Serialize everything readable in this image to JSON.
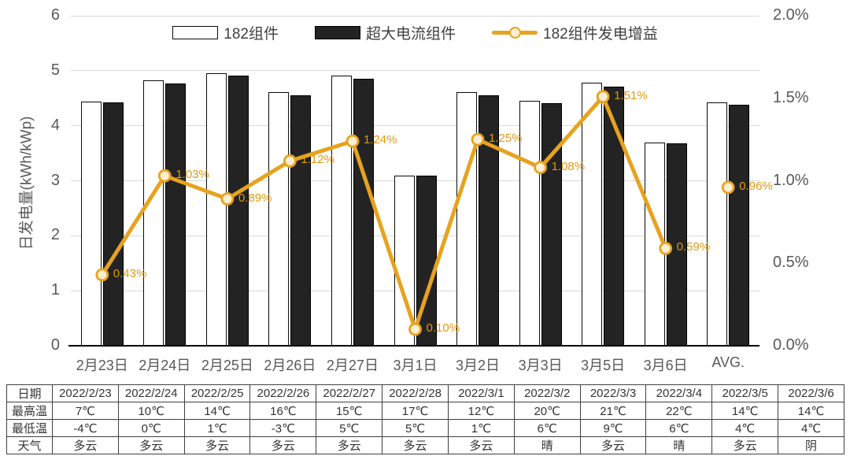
{
  "chart_data": {
    "type": "combo-bar-line",
    "title": "",
    "categories": [
      "2月23日",
      "2月24日",
      "2月25日",
      "2月26日",
      "2月27日",
      "3月1日",
      "3月2日",
      "3月3日",
      "3月5日",
      "3月6日",
      "AVG."
    ],
    "series": [
      {
        "name": "182组件",
        "type": "bar",
        "axis": "left",
        "values": [
          4.44,
          4.82,
          4.95,
          4.61,
          4.91,
          3.1,
          4.61,
          4.46,
          4.78,
          3.7,
          4.42
        ]
      },
      {
        "name": "超大电流组件",
        "type": "bar",
        "axis": "left",
        "values": [
          4.42,
          4.77,
          4.91,
          4.56,
          4.85,
          3.09,
          4.55,
          4.41,
          4.71,
          3.68,
          4.38
        ]
      },
      {
        "name": "182组件发电增益",
        "type": "line",
        "axis": "right",
        "values": [
          0.43,
          1.03,
          0.89,
          1.12,
          1.24,
          0.1,
          1.25,
          1.08,
          1.51,
          0.59,
          0.96
        ],
        "labels": [
          "0.43%",
          "1.03%",
          "0.89%",
          "1.12%",
          "1.24%",
          "0.10%",
          "1.25%",
          "1.08%",
          "1.51%",
          "0.59%",
          "0.96%"
        ],
        "last_point_disconnected": true
      }
    ],
    "ylabel": "日发电量(kWh/kWp)",
    "y_left": {
      "min": 0,
      "max": 6,
      "ticks": [
        0,
        1,
        2,
        3,
        4,
        5,
        6
      ]
    },
    "y_right": {
      "min": 0,
      "max": 2,
      "tick_labels": [
        "0.0%",
        "0.5%",
        "1.0%",
        "1.5%",
        "2.0%"
      ],
      "tick_values": [
        0,
        0.5,
        1,
        1.5,
        2
      ]
    },
    "legend_position": "top",
    "grid": "horizontal"
  },
  "colors": {
    "gain_line": "#E7A21E",
    "gain_marker_fill": "#FCEFD0",
    "gain_label_text": "#E09912",
    "bar_dark": "#232323",
    "bar_white": "#FFFFFF",
    "bar_border": "#0A0A0A",
    "axis_text": "#595959",
    "gridline": "#D9D9D9",
    "table_border": "#404040",
    "table_text": "#333333"
  },
  "table": {
    "row_headers": [
      "日期",
      "最高温",
      "最低温",
      "天气"
    ],
    "dates": [
      "2022/2/23",
      "2022/2/24",
      "2022/2/25",
      "2022/2/26",
      "2022/2/27",
      "2022/2/28",
      "2022/3/1",
      "2022/3/2",
      "2022/3/3",
      "2022/3/4",
      "2022/3/5",
      "2022/3/6"
    ],
    "max_temp": [
      "7℃",
      "10℃",
      "14℃",
      "16℃",
      "15℃",
      "17℃",
      "12℃",
      "20℃",
      "21℃",
      "22℃",
      "14℃",
      "14℃"
    ],
    "min_temp": [
      "-4℃",
      "0℃",
      "1℃",
      "-3℃",
      "5℃",
      "5℃",
      "1℃",
      "6℃",
      "9℃",
      "6℃",
      "4℃",
      "4℃"
    ],
    "weather": [
      "多云",
      "多云",
      "多云",
      "多云",
      "多云",
      "多云",
      "多云",
      "晴",
      "多云",
      "晴",
      "多云",
      "阴"
    ]
  }
}
